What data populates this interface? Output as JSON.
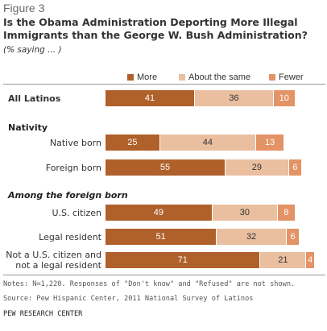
{
  "figure_label": "Figure 3",
  "title": "Is the Obama Administration  Deporting More Illegal Immigrants than the George W. Bush Administration?",
  "subtitle": "(% saying ... )",
  "legend": {
    "more": "More",
    "same": "About the same",
    "fewer": "Fewer"
  },
  "colors": {
    "more": "#b0602a",
    "same": "#eabfa0",
    "fewer": "#e39365"
  },
  "groups": {
    "nativity": "Nativity",
    "foreign_born": "Among the foreign born"
  },
  "notes": "Notes: N=1,220. Responses of \"Don't know\" and \"Refused\" are not shown.",
  "source": "Source: Pew Hispanic Center, 2011 National Survey of Latinos",
  "org": "PEW RESEARCH CENTER",
  "chart_data": {
    "type": "bar",
    "stacked": true,
    "orientation": "horizontal",
    "title": "Is the Obama Administration  Deporting More Illegal Immigrants than the George W. Bush Administration?",
    "categories": [
      "All Latinos",
      "Native born",
      "Foreign born",
      "U.S. citizen",
      "Legal resident",
      "Not a U.S. citizen and not a legal resident"
    ],
    "category_lines": [
      [
        "All Latinos"
      ],
      [
        "Native born"
      ],
      [
        "Foreign born"
      ],
      [
        "U.S. citizen"
      ],
      [
        "Legal resident"
      ],
      [
        "Not a U.S. citizen and",
        "not a legal resident"
      ]
    ],
    "series": [
      {
        "name": "More",
        "values": [
          41,
          25,
          55,
          49,
          51,
          71
        ]
      },
      {
        "name": "About the same",
        "values": [
          36,
          44,
          29,
          30,
          32,
          21
        ]
      },
      {
        "name": "Fewer",
        "values": [
          10,
          13,
          6,
          8,
          6,
          4
        ]
      }
    ],
    "xlim": [
      0,
      100
    ]
  }
}
